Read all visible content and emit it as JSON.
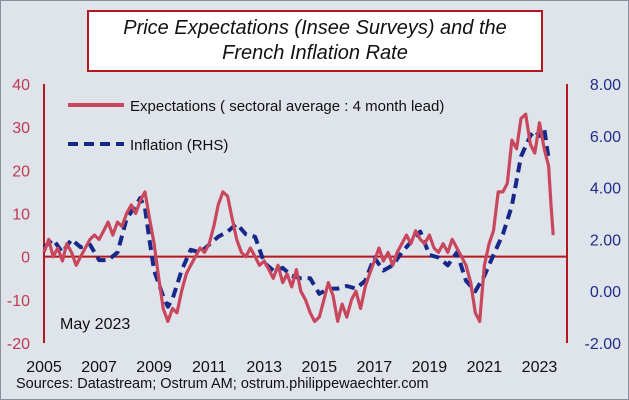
{
  "title": {
    "line1": "Price Expectations (Insee Surveys) and the",
    "line2": "French Inflation Rate"
  },
  "source": "Sources: Datastream;  Ostrum  AM; ostrum.philippewaechter.com",
  "colors": {
    "expectations": "#c9475d",
    "inflation": "#16288a",
    "zero_line": "#b5161f",
    "left_axis_text": "#c03a52",
    "right_axis_text": "#1e2e8a",
    "plot_bg": "#dfe3ea",
    "border": "#b5161f"
  },
  "chart_data": {
    "type": "line",
    "annotation": "May 2023",
    "x_ticks": [
      "2005",
      "2007",
      "2009",
      "2011",
      "2013",
      "2015",
      "2017",
      "2019",
      "2021",
      "2023"
    ],
    "xlim": [
      2005,
      2024
    ],
    "y_left": {
      "ticks": [
        "40",
        "30",
        "20",
        "10",
        "0",
        "-10",
        "-20"
      ],
      "lim": [
        -20,
        40
      ]
    },
    "y_right": {
      "ticks": [
        "8.00",
        "6.00",
        "4.00",
        "2.00",
        "0.00",
        "-2.00"
      ],
      "lim": [
        -2,
        8
      ]
    },
    "legend_position": "top-left",
    "series": [
      {
        "name": "Expectations ( sectoral average : 4 month lead)",
        "axis": "left",
        "style": "solid",
        "points": [
          [
            2005.0,
            1
          ],
          [
            2005.17,
            4
          ],
          [
            2005.33,
            0
          ],
          [
            2005.5,
            2
          ],
          [
            2005.67,
            -1
          ],
          [
            2005.83,
            3
          ],
          [
            2006.0,
            1
          ],
          [
            2006.17,
            -2
          ],
          [
            2006.33,
            0
          ],
          [
            2006.5,
            2
          ],
          [
            2006.67,
            4
          ],
          [
            2006.83,
            5
          ],
          [
            2007.0,
            4
          ],
          [
            2007.17,
            6
          ],
          [
            2007.33,
            8
          ],
          [
            2007.5,
            5
          ],
          [
            2007.67,
            8
          ],
          [
            2007.83,
            7
          ],
          [
            2008.0,
            10
          ],
          [
            2008.17,
            12
          ],
          [
            2008.33,
            10
          ],
          [
            2008.5,
            13
          ],
          [
            2008.67,
            15
          ],
          [
            2008.83,
            9
          ],
          [
            2009.0,
            3
          ],
          [
            2009.17,
            -5
          ],
          [
            2009.33,
            -12
          ],
          [
            2009.5,
            -15
          ],
          [
            2009.67,
            -12
          ],
          [
            2009.83,
            -13
          ],
          [
            2010.0,
            -8
          ],
          [
            2010.17,
            -4
          ],
          [
            2010.33,
            -2
          ],
          [
            2010.5,
            0
          ],
          [
            2010.67,
            2
          ],
          [
            2010.83,
            1
          ],
          [
            2011.0,
            3
          ],
          [
            2011.17,
            7
          ],
          [
            2011.33,
            12
          ],
          [
            2011.5,
            15
          ],
          [
            2011.67,
            14
          ],
          [
            2011.83,
            9
          ],
          [
            2012.0,
            4
          ],
          [
            2012.17,
            1
          ],
          [
            2012.33,
            0
          ],
          [
            2012.5,
            2
          ],
          [
            2012.67,
            0
          ],
          [
            2012.83,
            -2
          ],
          [
            2013.0,
            -1
          ],
          [
            2013.17,
            -3
          ],
          [
            2013.33,
            -5
          ],
          [
            2013.5,
            -2
          ],
          [
            2013.67,
            -6
          ],
          [
            2013.83,
            -4
          ],
          [
            2014.0,
            -7
          ],
          [
            2014.17,
            -3
          ],
          [
            2014.33,
            -8
          ],
          [
            2014.5,
            -10
          ],
          [
            2014.67,
            -13
          ],
          [
            2014.83,
            -15
          ],
          [
            2015.0,
            -14
          ],
          [
            2015.17,
            -10
          ],
          [
            2015.33,
            -6
          ],
          [
            2015.5,
            -9
          ],
          [
            2015.67,
            -15
          ],
          [
            2015.83,
            -11
          ],
          [
            2016.0,
            -14
          ],
          [
            2016.17,
            -10
          ],
          [
            2016.33,
            -8
          ],
          [
            2016.5,
            -12
          ],
          [
            2016.67,
            -7
          ],
          [
            2016.83,
            -4
          ],
          [
            2017.0,
            -1
          ],
          [
            2017.17,
            2
          ],
          [
            2017.33,
            -1
          ],
          [
            2017.5,
            1
          ],
          [
            2017.67,
            -2
          ],
          [
            2017.83,
            1
          ],
          [
            2018.0,
            3
          ],
          [
            2018.17,
            5
          ],
          [
            2018.33,
            3
          ],
          [
            2018.5,
            6
          ],
          [
            2018.67,
            4
          ],
          [
            2018.83,
            3
          ],
          [
            2019.0,
            5
          ],
          [
            2019.17,
            2
          ],
          [
            2019.33,
            1
          ],
          [
            2019.5,
            3
          ],
          [
            2019.67,
            1
          ],
          [
            2019.83,
            4
          ],
          [
            2020.0,
            2
          ],
          [
            2020.17,
            0
          ],
          [
            2020.33,
            -2
          ],
          [
            2020.5,
            -6
          ],
          [
            2020.67,
            -13
          ],
          [
            2020.83,
            -15
          ],
          [
            2021.0,
            -2
          ],
          [
            2021.17,
            3
          ],
          [
            2021.33,
            6
          ],
          [
            2021.5,
            15
          ],
          [
            2021.67,
            15
          ],
          [
            2021.83,
            17
          ],
          [
            2022.0,
            27
          ],
          [
            2022.17,
            25
          ],
          [
            2022.33,
            32
          ],
          [
            2022.5,
            33
          ],
          [
            2022.67,
            26
          ],
          [
            2022.83,
            24
          ],
          [
            2023.0,
            31
          ],
          [
            2023.17,
            25
          ],
          [
            2023.33,
            21
          ],
          [
            2023.42,
            12
          ],
          [
            2023.5,
            5
          ]
        ]
      },
      {
        "name": "Inflation (RHS)",
        "axis": "right",
        "style": "dashed",
        "points": [
          [
            2005.0,
            1.7
          ],
          [
            2005.33,
            2.0
          ],
          [
            2005.67,
            1.5
          ],
          [
            2006.0,
            2.0
          ],
          [
            2006.33,
            1.7
          ],
          [
            2006.67,
            1.8
          ],
          [
            2007.0,
            1.2
          ],
          [
            2007.33,
            1.2
          ],
          [
            2007.67,
            1.5
          ],
          [
            2008.0,
            2.8
          ],
          [
            2008.33,
            3.3
          ],
          [
            2008.5,
            3.6
          ],
          [
            2008.67,
            3.2
          ],
          [
            2008.83,
            2.0
          ],
          [
            2009.0,
            0.8
          ],
          [
            2009.33,
            -0.2
          ],
          [
            2009.5,
            -0.6
          ],
          [
            2009.67,
            -0.3
          ],
          [
            2010.0,
            0.8
          ],
          [
            2010.33,
            1.6
          ],
          [
            2010.67,
            1.5
          ],
          [
            2011.0,
            1.8
          ],
          [
            2011.33,
            2.1
          ],
          [
            2011.67,
            2.3
          ],
          [
            2012.0,
            2.6
          ],
          [
            2012.33,
            2.2
          ],
          [
            2012.67,
            2.1
          ],
          [
            2013.0,
            1.1
          ],
          [
            2013.33,
            0.8
          ],
          [
            2013.67,
            0.9
          ],
          [
            2014.0,
            0.6
          ],
          [
            2014.33,
            0.5
          ],
          [
            2014.67,
            0.5
          ],
          [
            2015.0,
            -0.1
          ],
          [
            2015.33,
            0.1
          ],
          [
            2015.67,
            0.1
          ],
          [
            2016.0,
            0.2
          ],
          [
            2016.33,
            0.1
          ],
          [
            2016.67,
            0.4
          ],
          [
            2017.0,
            1.3
          ],
          [
            2017.33,
            0.8
          ],
          [
            2017.67,
            1.0
          ],
          [
            2018.0,
            1.5
          ],
          [
            2018.33,
            1.9
          ],
          [
            2018.67,
            2.3
          ],
          [
            2019.0,
            1.4
          ],
          [
            2019.33,
            1.3
          ],
          [
            2019.67,
            1.0
          ],
          [
            2020.0,
            1.5
          ],
          [
            2020.33,
            0.4
          ],
          [
            2020.67,
            0.0
          ],
          [
            2021.0,
            0.6
          ],
          [
            2021.33,
            1.4
          ],
          [
            2021.67,
            2.2
          ],
          [
            2022.0,
            3.3
          ],
          [
            2022.33,
            5.2
          ],
          [
            2022.67,
            6.0
          ],
          [
            2022.83,
            6.2
          ],
          [
            2023.0,
            6.0
          ],
          [
            2023.17,
            6.3
          ],
          [
            2023.33,
            5.1
          ]
        ]
      }
    ]
  }
}
